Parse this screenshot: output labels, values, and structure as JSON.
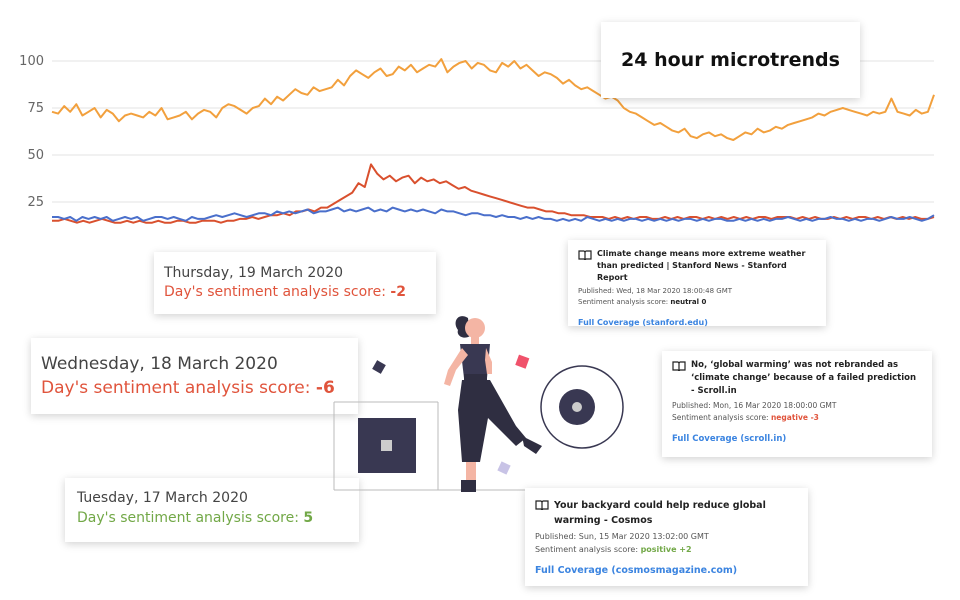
{
  "title": "24 hour microtrends",
  "colors": {
    "positive": "#72a847",
    "negative": "#e0543c",
    "neutral": "#222222",
    "series_orange": "#f2a03d",
    "series_red": "#d9502e",
    "series_blue": "#4a6fcb",
    "link": "#3b84e0"
  },
  "chart_data": {
    "type": "line",
    "yticks": [
      100,
      75,
      50,
      25
    ],
    "ylim": [
      10,
      110
    ],
    "grid": true,
    "series": [
      {
        "color": "#f2a03d",
        "values": [
          73,
          72,
          76,
          73,
          77,
          71,
          73,
          75,
          70,
          74,
          72,
          68,
          71,
          72,
          71,
          70,
          73,
          71,
          75,
          69,
          70,
          71,
          73,
          69,
          72,
          74,
          73,
          70,
          75,
          77,
          76,
          74,
          72,
          75,
          76,
          80,
          77,
          81,
          79,
          82,
          85,
          83,
          82,
          86,
          84,
          85,
          86,
          90,
          87,
          92,
          95,
          93,
          91,
          94,
          96,
          92,
          93,
          97,
          95,
          98,
          94,
          96,
          98,
          97,
          101,
          94,
          97,
          99,
          100,
          96,
          99,
          98,
          95,
          94,
          99,
          97,
          100,
          96,
          98,
          95,
          92,
          94,
          93,
          91,
          88,
          90,
          87,
          85,
          86,
          84,
          82,
          80,
          81,
          79,
          75,
          73,
          72,
          70,
          68,
          66,
          67,
          65,
          63,
          62,
          64,
          60,
          59,
          61,
          62,
          60,
          61,
          59,
          58,
          60,
          62,
          61,
          64,
          62,
          63,
          65,
          64,
          66,
          67,
          68,
          69,
          70,
          72,
          71,
          73,
          74,
          75,
          74,
          73,
          72,
          71,
          73,
          72,
          73,
          80,
          73,
          72,
          71,
          74,
          72,
          73,
          82
        ]
      },
      {
        "color": "#d9502e",
        "values": [
          15,
          15,
          16,
          15,
          14,
          15,
          14,
          15,
          16,
          15,
          14,
          14,
          15,
          14,
          15,
          14,
          14,
          15,
          14,
          14,
          15,
          15,
          14,
          14,
          15,
          15,
          15,
          14,
          15,
          15,
          16,
          16,
          17,
          16,
          17,
          18,
          18,
          19,
          18,
          20,
          20,
          21,
          20,
          22,
          22,
          24,
          26,
          28,
          30,
          35,
          33,
          45,
          40,
          37,
          39,
          36,
          38,
          39,
          35,
          38,
          36,
          37,
          35,
          36,
          34,
          32,
          33,
          31,
          30,
          29,
          28,
          27,
          26,
          25,
          24,
          23,
          22,
          22,
          21,
          20,
          20,
          19,
          19,
          18,
          18,
          18,
          17,
          17,
          17,
          16,
          17,
          16,
          17,
          16,
          17,
          17,
          16,
          16,
          17,
          16,
          17,
          16,
          17,
          17,
          16,
          17,
          16,
          17,
          16,
          17,
          16,
          17,
          16,
          17,
          17,
          16,
          17,
          17,
          17,
          16,
          17,
          16,
          17,
          16,
          16,
          17,
          16,
          17,
          16,
          17,
          17,
          16,
          17,
          16,
          17,
          16,
          17,
          16,
          17,
          16,
          16,
          17
        ]
      },
      {
        "color": "#4a6fcb",
        "values": [
          17,
          17,
          16,
          17,
          15,
          17,
          16,
          17,
          16,
          17,
          15,
          16,
          17,
          16,
          17,
          15,
          16,
          17,
          17,
          16,
          17,
          16,
          15,
          17,
          16,
          16,
          17,
          18,
          17,
          18,
          19,
          18,
          17,
          18,
          19,
          19,
          18,
          20,
          19,
          20,
          19,
          20,
          21,
          19,
          20,
          20,
          21,
          22,
          20,
          21,
          20,
          21,
          22,
          20,
          21,
          20,
          22,
          21,
          20,
          21,
          20,
          21,
          20,
          19,
          21,
          20,
          20,
          19,
          18,
          19,
          19,
          18,
          18,
          17,
          18,
          17,
          17,
          16,
          17,
          16,
          17,
          16,
          16,
          15,
          16,
          15,
          16,
          15,
          17,
          16,
          15,
          16,
          15,
          16,
          15,
          16,
          16,
          15,
          16,
          15,
          16,
          15,
          16,
          15,
          16,
          16,
          15,
          16,
          15,
          16,
          16,
          15,
          15,
          16,
          15,
          16,
          15,
          16,
          15,
          16,
          16,
          17,
          16,
          15,
          16,
          15,
          16,
          16,
          17,
          16,
          16,
          15,
          16,
          15,
          16,
          16,
          15,
          16,
          17,
          16,
          16,
          17,
          16,
          15,
          16,
          18
        ]
      }
    ]
  },
  "days": {
    "thursday": {
      "date": "Thursday, 19 March 2020",
      "label": "Day's sentiment analysis score: ",
      "score": "-2"
    },
    "wednesday": {
      "date": "Wednesday, 18 March 2020",
      "label": "Day's sentiment analysis score: ",
      "score": "-6"
    },
    "tuesday": {
      "date": "Tuesday, 17 March 2020",
      "label": "Day's sentiment analysis score: ",
      "score": "5"
    }
  },
  "news": [
    {
      "headline": "Climate change means more extreme weather than predicted | Stanford News - Stanford Report",
      "published": "Published: Wed, 18 Mar 2020 18:00:48 GMT",
      "sentiment_label": "Sentiment analysis score: ",
      "sentiment_value": "neutral 0",
      "coverage": "Full Coverage (stanford.edu)"
    },
    {
      "headline": "No, ‘global warming’ was not rebranded as ‘climate change’ because of a failed prediction - Scroll.in",
      "published": "Published: Mon, 16 Mar 2020 18:00:00 GMT",
      "sentiment_label": "Sentiment analysis score: ",
      "sentiment_value": "negative -3",
      "coverage": "Full Coverage (scroll.in)"
    },
    {
      "headline": "Your backyard could help reduce global warming - Cosmos",
      "published": "Published: Sun, 15 Mar 2020 13:02:00 GMT",
      "sentiment_label": "Sentiment analysis score: ",
      "sentiment_value": "positive +2",
      "coverage": "Full Coverage (cosmosmagazine.com)"
    }
  ]
}
